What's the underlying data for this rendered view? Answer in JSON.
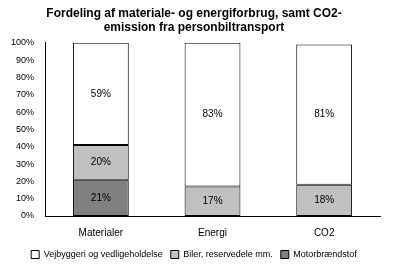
{
  "chart_data": {
    "type": "bar",
    "title": [
      "Fordeling af materiale- og energiforbrug, samt CO2-",
      "emission fra personbiltransport"
    ],
    "categories": [
      "Materialer",
      "Energi",
      "CO2"
    ],
    "stacked": true,
    "grid": false,
    "legend": "bottom",
    "data_labels": true,
    "ylim": [
      0,
      100
    ],
    "yticks": [
      {
        "value": 0,
        "label": "0%"
      },
      {
        "value": 10,
        "label": "10%"
      },
      {
        "value": 20,
        "label": "20%"
      },
      {
        "value": 30,
        "label": "30%"
      },
      {
        "value": 40,
        "label": "40%"
      },
      {
        "value": 50,
        "label": "50%"
      },
      {
        "value": 60,
        "label": "60%"
      },
      {
        "value": 70,
        "label": "70%"
      },
      {
        "value": 80,
        "label": "80%"
      },
      {
        "value": 90,
        "label": "90%"
      },
      {
        "value": 100,
        "label": "100%"
      }
    ],
    "series": [
      {
        "name": "Motorbrændstof",
        "color": "#808080",
        "values": [
          21,
          null,
          null
        ],
        "value_labels": [
          "21%",
          null,
          null
        ]
      },
      {
        "name": "Biler, reservedele mm.",
        "color": "#c0c0c0",
        "values": [
          20,
          17,
          18
        ],
        "value_labels": [
          "20%",
          "17%",
          "18%"
        ]
      },
      {
        "name": "Vejbyggeri og vedligeholdelse",
        "color": "#ffffff",
        "values": [
          59,
          83,
          81
        ],
        "value_labels": [
          "59%",
          "83%",
          "81%"
        ]
      }
    ]
  }
}
